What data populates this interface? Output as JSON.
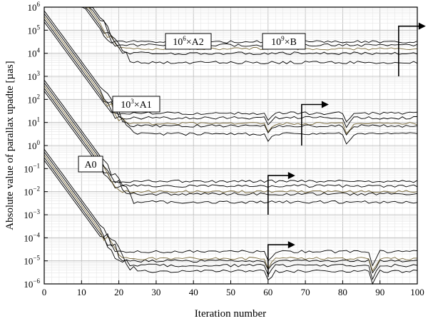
{
  "chart_data": {
    "type": "line",
    "title": "",
    "xlabel": "Iteration number",
    "ylabel": "Absolute value of parallax upadte [µas]",
    "xlim": [
      0,
      100
    ],
    "ylim": [
      1e-06,
      1000000.0
    ],
    "y_scale": "log",
    "grid": true,
    "x_ticks": [
      "0",
      "10",
      "20",
      "30",
      "40",
      "50",
      "60",
      "70",
      "80",
      "90",
      "100"
    ],
    "y_ticks": [
      {
        "base": "10",
        "exp": "−6"
      },
      {
        "base": "10",
        "exp": "−5"
      },
      {
        "base": "10",
        "exp": "−4"
      },
      {
        "base": "10",
        "exp": "−3"
      },
      {
        "base": "10",
        "exp": "−2"
      },
      {
        "base": "10",
        "exp": "−1"
      },
      {
        "base": "10",
        "exp": "0"
      },
      {
        "base": "10",
        "exp": "1"
      },
      {
        "base": "10",
        "exp": "2"
      },
      {
        "base": "10",
        "exp": "3"
      },
      {
        "base": "10",
        "exp": "4"
      },
      {
        "base": "10",
        "exp": "5"
      },
      {
        "base": "10",
        "exp": "6"
      }
    ],
    "groups": [
      {
        "label": "A0",
        "label_parts": [
          "A0"
        ],
        "start_log": -0.4,
        "slope": 0.22,
        "plateau_it": 57,
        "plateau_offsets": [
          -5.0,
          -4.6,
          -4.9,
          -5.2,
          -5.45
        ],
        "bumps": [
          {
            "it": 60,
            "depth": 0.4
          },
          {
            "it": 88,
            "depth": 0.55
          }
        ],
        "arrow": {
          "x": 60,
          "y_from": 2e-06,
          "y_to": 5e-05
        }
      },
      {
        "label": "10³×A1",
        "label_parts": [
          "10",
          "3",
          "×A1"
        ],
        "start_log": 2.6,
        "slope": 0.22,
        "plateau_it": 45,
        "plateau_offsets": [
          -1.55,
          -1.75,
          -2.0,
          -2.1,
          -2.45
        ],
        "bumps": [],
        "arrow": {
          "x": 60,
          "y_from": 0.001,
          "y_to": 0.05
        }
      },
      {
        "label": "10⁶×A2",
        "label_parts": [
          "10",
          "6",
          "×A2"
        ],
        "start_log": 5.6,
        "slope": 0.22,
        "plateau_it": 42,
        "plateau_offsets": [
          1.4,
          1.2,
          0.95,
          0.85,
          0.5
        ],
        "bumps": [
          {
            "it": 60,
            "depth": 0.3
          },
          {
            "it": 81,
            "depth": 0.4
          }
        ],
        "arrow": {
          "x": 69,
          "y_from": 1,
          "y_to": 60
        }
      },
      {
        "label": "10⁹×B",
        "label_parts": [
          "10",
          "9",
          "×B"
        ],
        "start_log": 8.6,
        "slope": 0.22,
        "plateau_it": 87,
        "plateau_offsets": [
          4.5,
          4.35,
          4.2,
          4.0,
          3.6
        ],
        "bumps": [],
        "arrow": {
          "x": 95,
          "y_from": 1000.0,
          "y_to": 150000.0
        }
      }
    ]
  }
}
